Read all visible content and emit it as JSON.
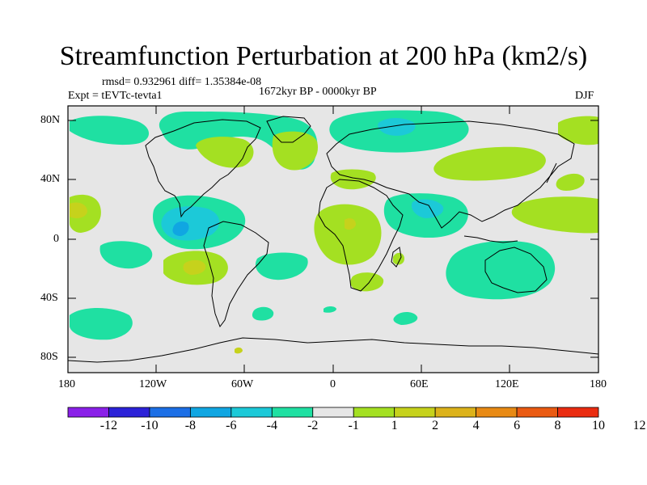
{
  "title": "Streamfunction Perturbation at 200 hPa (km2/s)",
  "stats": "rmsd= 0.932961 diff= 1.35384e-08",
  "experiment": "Expt = tEVTc-tevta1",
  "period": "1672kyr BP - 0000kyr BP",
  "season": "DJF",
  "lat_ticks": [
    "80N",
    "40N",
    "0",
    "40S",
    "80S"
  ],
  "lon_ticks": [
    "180",
    "120W",
    "60W",
    "0",
    "60E",
    "120E",
    "180"
  ],
  "colorbar": {
    "colors": [
      "#8a20e8",
      "#2c22d8",
      "#1c6fe6",
      "#10a6e2",
      "#1cc9d8",
      "#1fe0a2",
      "#e6e6e6",
      "#a4e022",
      "#c6d21c",
      "#dcb21a",
      "#e88a14",
      "#ea5a12",
      "#ea2c10"
    ],
    "labels": [
      "-12",
      "-10",
      "-8",
      "-6",
      "-4",
      "-2",
      "-1",
      "1",
      "2",
      "4",
      "6",
      "8",
      "10",
      "12"
    ]
  },
  "colors": {
    "background": "#e6e6e6",
    "neg_light": "#1fe0a2",
    "neg_mid": "#1cc9d8",
    "neg_dark": "#10a6e2",
    "pos_light": "#a4e022",
    "pos_mid": "#c6d21c",
    "pos_dark": "#dcb21a"
  }
}
